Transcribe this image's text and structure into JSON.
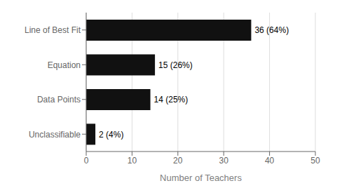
{
  "chart_data": {
    "type": "bar",
    "orientation": "horizontal",
    "categories": [
      "Line of Best Fit",
      "Equation",
      "Data Points",
      "Unclassifiable"
    ],
    "values": [
      36,
      15,
      14,
      2
    ],
    "value_labels": [
      "36 (64%)",
      "15 (26%)",
      "14 (25%)",
      "2 (4%)"
    ],
    "data_labels": true,
    "color": "#111111",
    "xlabel": "Number of Teachers",
    "xlim": [
      0,
      50
    ],
    "xticks": [
      0,
      10,
      20,
      30,
      40,
      50
    ],
    "grid": true
  }
}
